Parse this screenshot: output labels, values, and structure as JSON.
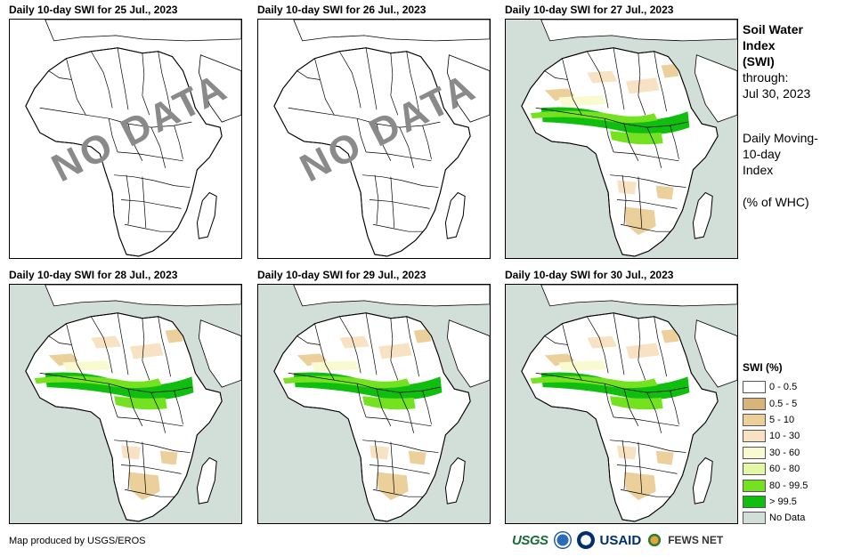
{
  "panels": [
    {
      "title": "Daily 10-day  SWI for 25 Jul., 2023",
      "status": "no-data",
      "stamp": "NO DATA"
    },
    {
      "title": "Daily 10-day  SWI for 26 Jul., 2023",
      "status": "no-data",
      "stamp": "NO DATA"
    },
    {
      "title": "Daily 10-day  SWI for 27 Jul., 2023",
      "status": "data"
    },
    {
      "title": "Daily 10-day  SWI for 28 Jul., 2023",
      "status": "data"
    },
    {
      "title": "Daily 10-day  SWI for 29 Jul., 2023",
      "status": "data"
    },
    {
      "title": "Daily 10-day  SWI for 30 Jul., 2023",
      "status": "data"
    }
  ],
  "sidebar": {
    "title": "Soil Water\nIndex\n(SWI)",
    "through": "through:\nJul 30, 2023",
    "description": "Daily Moving-\n10-day\nIndex",
    "units": "(% of WHC)"
  },
  "legend": {
    "title": "SWI (%)",
    "items": [
      {
        "label": "0 - 0.5",
        "color": "#ffffff"
      },
      {
        "label": "0.5 - 5",
        "color": "#d8b47a"
      },
      {
        "label": "5 - 10",
        "color": "#ecd09c"
      },
      {
        "label": "10 - 30",
        "color": "#f7e3c3"
      },
      {
        "label": "30 - 60",
        "color": "#fafad0"
      },
      {
        "label": "60 - 80",
        "color": "#e3f7a6"
      },
      {
        "label": "80 - 99.5",
        "color": "#74e221"
      },
      {
        "label": "> 99.5",
        "color": "#0fbe0f"
      },
      {
        "label": "No Data",
        "color": "#d1dfd8"
      }
    ]
  },
  "credit": "Map produced by USGS/EROS",
  "logos": {
    "usgs": "USGS",
    "noaa": "NOAA",
    "usaid": "USAID",
    "fews": "FEWS NET"
  },
  "colors": {
    "ocean_data": "#d1dfd8",
    "ocean_nodata": "#ffffff",
    "land": "#ffffff",
    "outline": "#000000"
  }
}
